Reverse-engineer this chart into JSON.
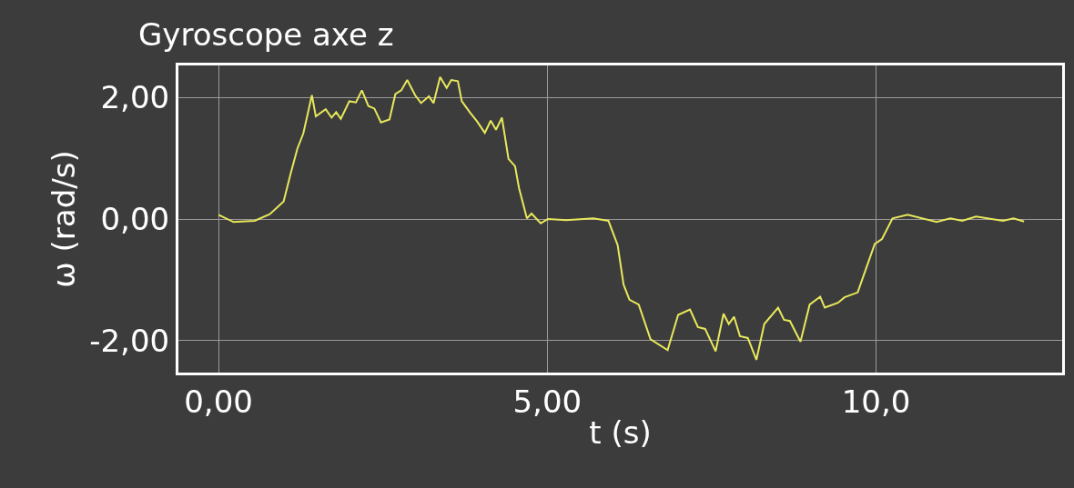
{
  "chart_data": {
    "type": "line",
    "title": "Gyroscope axe z",
    "xlabel": "t (s)",
    "ylabel": "ω (rad/s)",
    "xlim": [
      -0.61,
      12.83
    ],
    "ylim": [
      -2.53,
      2.53
    ],
    "xticks": [
      {
        "value": 0,
        "label": "0,00"
      },
      {
        "value": 5,
        "label": "5,00"
      },
      {
        "value": 10,
        "label": "10,0"
      }
    ],
    "yticks": [
      {
        "value": -2,
        "label": "-2,00"
      },
      {
        "value": 0,
        "label": "0,00"
      },
      {
        "value": 2,
        "label": "2,00"
      }
    ],
    "grid": true,
    "marker": "none",
    "line_style": "solid",
    "series": [
      {
        "color": "#e8e85c",
        "x": [
          0.0,
          0.23,
          0.55,
          0.78,
          0.99,
          1.1,
          1.2,
          1.29,
          1.42,
          1.48,
          1.63,
          1.72,
          1.79,
          1.86,
          1.99,
          2.09,
          2.18,
          2.28,
          2.37,
          2.47,
          2.6,
          2.69,
          2.78,
          2.87,
          2.99,
          3.08,
          3.2,
          3.27,
          3.37,
          3.47,
          3.54,
          3.64,
          3.7,
          3.82,
          3.93,
          4.05,
          4.14,
          4.22,
          4.31,
          4.41,
          4.51,
          4.57,
          4.69,
          4.76,
          4.9,
          5.01,
          5.29,
          5.7,
          5.93,
          6.07,
          6.16,
          6.25,
          6.39,
          6.57,
          6.83,
          6.99,
          7.17,
          7.29,
          7.4,
          7.56,
          7.68,
          7.76,
          7.84,
          7.93,
          8.05,
          8.18,
          8.3,
          8.51,
          8.6,
          8.69,
          8.85,
          8.99,
          9.15,
          9.22,
          9.42,
          9.52,
          9.72,
          9.84,
          9.98,
          10.09,
          10.25,
          10.48,
          10.92,
          11.13,
          11.31,
          11.52,
          11.93,
          12.09,
          12.25
        ],
        "values": [
          0.07,
          -0.05,
          -0.03,
          0.08,
          0.29,
          0.76,
          1.16,
          1.41,
          2.04,
          1.69,
          1.81,
          1.67,
          1.76,
          1.65,
          1.94,
          1.92,
          2.12,
          1.86,
          1.82,
          1.59,
          1.64,
          2.06,
          2.12,
          2.29,
          2.04,
          1.91,
          2.02,
          1.91,
          2.34,
          2.16,
          2.29,
          2.27,
          1.94,
          1.76,
          1.61,
          1.42,
          1.62,
          1.47,
          1.67,
          0.99,
          0.87,
          0.51,
          0.01,
          0.09,
          -0.07,
          0.0,
          -0.02,
          0.01,
          -0.03,
          -0.43,
          -1.08,
          -1.33,
          -1.41,
          -1.98,
          -2.16,
          -1.58,
          -1.49,
          -1.78,
          -1.81,
          -2.18,
          -1.56,
          -1.73,
          -1.61,
          -1.93,
          -1.96,
          -2.32,
          -1.73,
          -1.46,
          -1.66,
          -1.68,
          -2.02,
          -1.41,
          -1.28,
          -1.46,
          -1.38,
          -1.29,
          -1.21,
          -0.84,
          -0.41,
          -0.33,
          0.01,
          0.07,
          -0.05,
          0.01,
          -0.03,
          0.04,
          -0.03,
          0.01,
          -0.04
        ]
      }
    ]
  }
}
